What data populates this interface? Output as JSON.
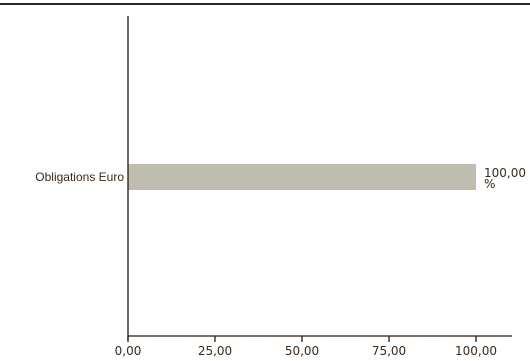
{
  "colors": {
    "top_rule": "#2b2b2b",
    "axis": "#2b1a0e",
    "bar": "#c0bcaf",
    "text": "#3a2a1c"
  },
  "chart_data": {
    "type": "bar",
    "orientation": "horizontal",
    "categories": [
      "Obligations Euro"
    ],
    "values": [
      100.0
    ],
    "data_labels": [
      "100,00 %"
    ],
    "xlim": [
      0,
      100
    ],
    "x_ticks": [
      {
        "value": 0,
        "label": "0,00"
      },
      {
        "value": 25,
        "label": "25,00"
      },
      {
        "value": 50,
        "label": "50,00"
      },
      {
        "value": 75,
        "label": "75,00"
      },
      {
        "value": 100,
        "label": "100,00"
      }
    ],
    "grid": false,
    "legend": "none"
  }
}
